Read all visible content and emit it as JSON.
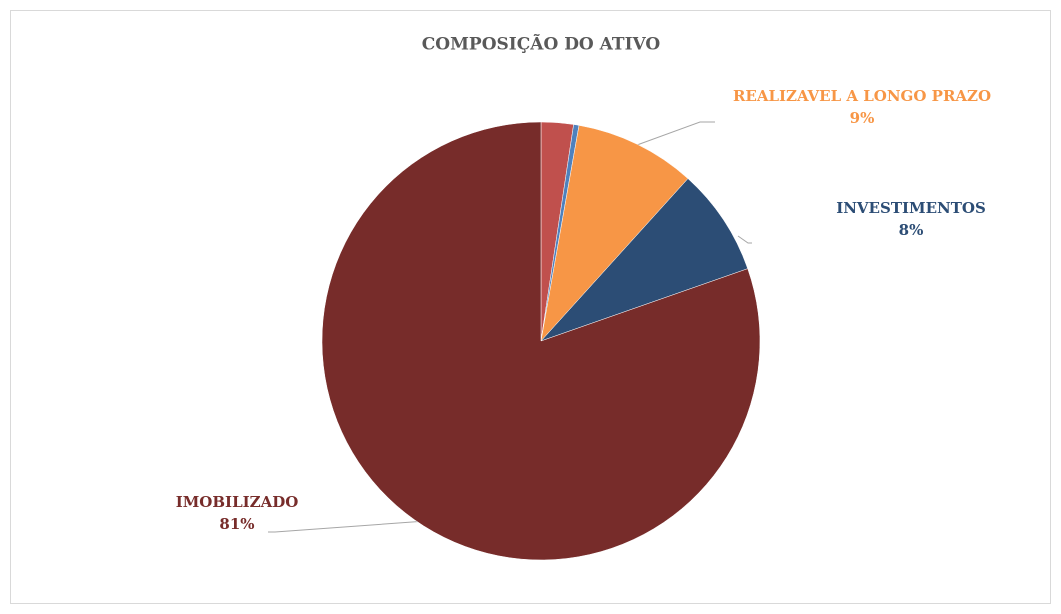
{
  "chart_data": {
    "type": "pie",
    "title": "COMPOSIÇÃO DO ATIVO",
    "categories": [
      null,
      null,
      "REALIZAVEL A LONGO PRAZO",
      "INVESTIMENTOS",
      "IMOBILIZADO"
    ],
    "values": [
      2.4,
      0.4,
      9,
      8,
      81
    ],
    "value_labels": [
      null,
      null,
      "9%",
      "8%",
      "81%"
    ],
    "colors": [
      "#c0504d",
      "#4f81bd",
      "#f79646",
      "#2c4d75",
      "#772c2a"
    ]
  }
}
